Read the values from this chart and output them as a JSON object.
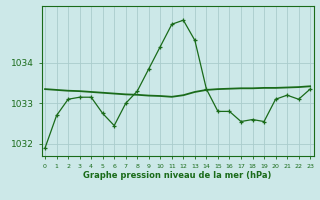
{
  "title": "Graphe pression niveau de la mer (hPa)",
  "bg_color": "#cce8e8",
  "grid_color": "#aacccc",
  "line_color": "#1a6b1a",
  "x_values": [
    0,
    1,
    2,
    3,
    4,
    5,
    6,
    7,
    8,
    9,
    10,
    11,
    12,
    13,
    14,
    15,
    16,
    17,
    18,
    19,
    20,
    21,
    22,
    23
  ],
  "y_main": [
    1031.9,
    1032.7,
    1033.1,
    1033.15,
    1033.15,
    1032.75,
    1032.45,
    1033.0,
    1033.3,
    1033.85,
    1034.4,
    1034.95,
    1035.05,
    1034.55,
    1033.35,
    1032.8,
    1032.8,
    1032.55,
    1032.6,
    1032.55,
    1033.1,
    1033.2,
    1033.1,
    1033.35
  ],
  "y_smooth": [
    1033.35,
    1033.33,
    1033.31,
    1033.3,
    1033.28,
    1033.26,
    1033.24,
    1033.22,
    1033.21,
    1033.19,
    1033.18,
    1033.16,
    1033.2,
    1033.28,
    1033.33,
    1033.35,
    1033.36,
    1033.37,
    1033.37,
    1033.38,
    1033.38,
    1033.39,
    1033.4,
    1033.42
  ],
  "ylim": [
    1031.7,
    1035.4
  ],
  "yticks": [
    1032,
    1033,
    1034
  ],
  "xlim": [
    -0.3,
    23.3
  ]
}
